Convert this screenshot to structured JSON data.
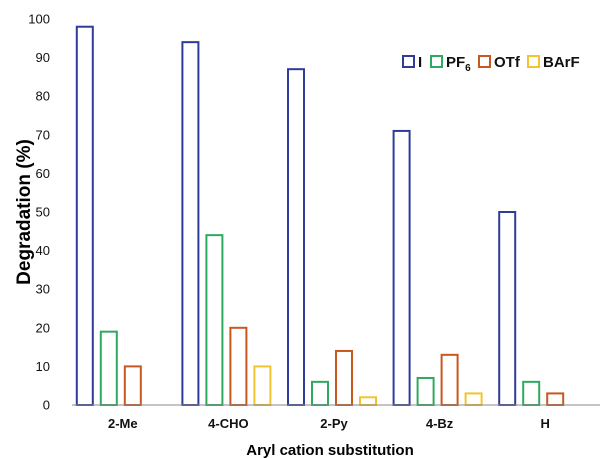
{
  "chart_data": {
    "type": "bar",
    "xlabel": "Aryl cation substitution",
    "ylabel": "Degradation (%)",
    "ylim": [
      0,
      100
    ],
    "yticks": [
      0,
      10,
      20,
      30,
      40,
      50,
      60,
      70,
      80,
      90,
      100
    ],
    "categories": [
      "2-Me",
      "4-CHO",
      "2-Py",
      "4-Bz",
      "H"
    ],
    "grid": false,
    "legend_position": "top-right",
    "series": [
      {
        "name": "I",
        "color": "#2F3C9A",
        "values": [
          98,
          94,
          87,
          71,
          50
        ]
      },
      {
        "name": "PF",
        "name_subscript": "6",
        "color": "#2EAA5E",
        "values": [
          19,
          44,
          6,
          7,
          6
        ]
      },
      {
        "name": "OTf",
        "color": "#C9581E",
        "values": [
          10,
          20,
          14,
          13,
          3
        ]
      },
      {
        "name": "BArF",
        "color": "#F4C430",
        "values": [
          null,
          10,
          2,
          3,
          null
        ]
      }
    ]
  }
}
